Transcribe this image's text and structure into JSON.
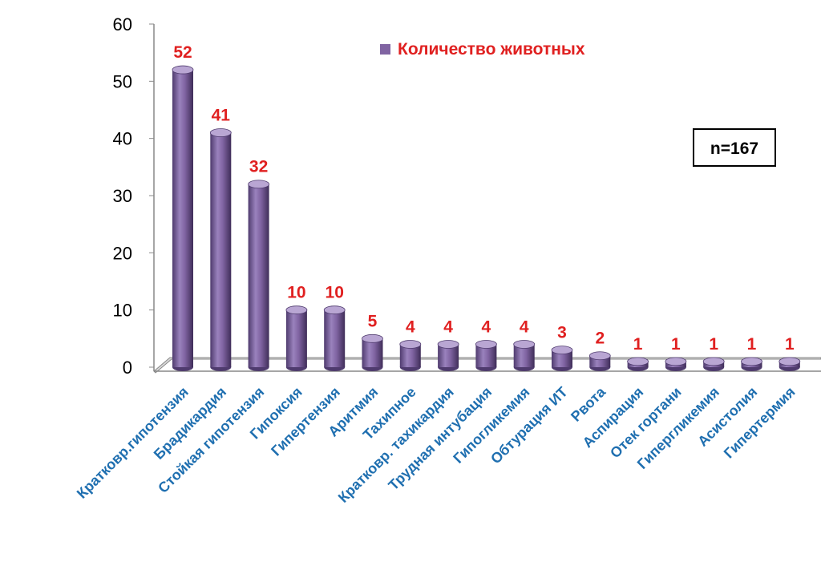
{
  "chart_data": {
    "type": "bar",
    "categories": [
      "Кратковр.гипотензия",
      "Брадикардия",
      "Стойкая гипотензия",
      "Гипоксия",
      "Гипертензия",
      "Аритмия",
      "Тахипное",
      "Кратковр. тахикардия",
      "Трудная интубация",
      "Гипогликемия",
      "Обтурация ИТ",
      "Рвота",
      "Аспирация",
      "Отек гортани",
      "Гипергликемия",
      "Асистолия",
      "Гипертермия"
    ],
    "series": [
      {
        "name": "Количество животных",
        "values": [
          52,
          41,
          32,
          10,
          10,
          5,
          4,
          4,
          4,
          4,
          3,
          2,
          1,
          1,
          1,
          1,
          1
        ]
      }
    ],
    "y_ticks": [
      "0",
      "10",
      "20",
      "30",
      "40",
      "50",
      "60"
    ],
    "ylim": [
      0,
      60
    ],
    "legend_position": "top",
    "annotation": "n=167",
    "colors": {
      "bar": "#8064a2",
      "bar_dark": "#4f3b6e",
      "bar_light": "#b9a6d3",
      "data_label": "#e02020",
      "category_label": "#1f6fb0",
      "legend_text": "#e02020",
      "axis": "#888888"
    }
  }
}
